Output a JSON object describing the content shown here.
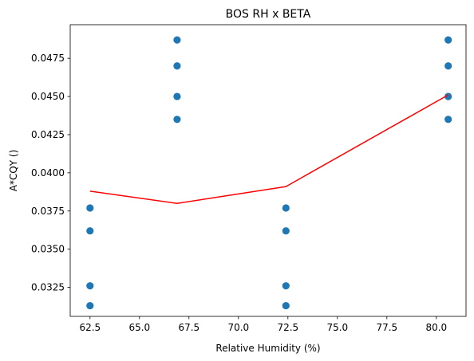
{
  "chart_data": {
    "type": "scatter",
    "title": "BOS RH x BETA",
    "xlabel": "Relative Humidity (%)",
    "ylabel": "A*CQY ()",
    "xlim": [
      61.5,
      81.5
    ],
    "ylim": [
      0.0306,
      0.0497
    ],
    "xticks": [
      62.5,
      65.0,
      67.5,
      70.0,
      72.5,
      75.0,
      77.5,
      80.0
    ],
    "xtick_labels": [
      "62.5",
      "65.0",
      "67.5",
      "70.0",
      "72.5",
      "75.0",
      "77.5",
      "80.0"
    ],
    "yticks": [
      0.0325,
      0.035,
      0.0375,
      0.04,
      0.0425,
      0.045,
      0.0475
    ],
    "ytick_labels": [
      "0.0325",
      "0.0350",
      "0.0375",
      "0.0400",
      "0.0425",
      "0.0450",
      "0.0475"
    ],
    "grid": false,
    "colors": {
      "points": "#1f77b4",
      "line": "#ff0000"
    },
    "series": [
      {
        "kind": "scatter",
        "x": [
          62.5,
          62.5,
          62.5,
          62.5,
          66.9,
          66.9,
          66.9,
          66.9,
          72.4,
          72.4,
          72.4,
          72.4,
          80.6,
          80.6,
          80.6,
          80.6
        ],
        "y": [
          0.0377,
          0.0362,
          0.0326,
          0.0313,
          0.0487,
          0.047,
          0.045,
          0.0435,
          0.0377,
          0.0362,
          0.0326,
          0.0313,
          0.0487,
          0.047,
          0.045,
          0.0435
        ]
      },
      {
        "kind": "line",
        "x": [
          62.5,
          66.9,
          72.4,
          80.6
        ],
        "y": [
          0.0388,
          0.038,
          0.0391,
          0.0451
        ]
      }
    ]
  }
}
